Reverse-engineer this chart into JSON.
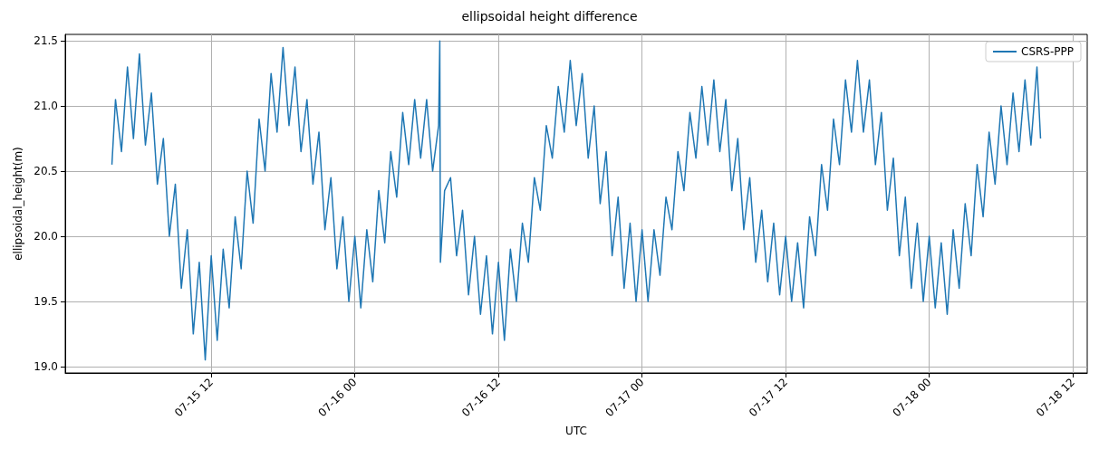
{
  "chart_data": {
    "type": "line",
    "title": "ellipsoidal height difference",
    "xlabel": "UTC",
    "ylabel": "ellipsoidal_height(m)",
    "x": [
      "--07-15T03:42",
      "--07-15T04:00",
      "--07-15T04:30",
      "--07-15T05:00",
      "--07-15T05:30",
      "--07-15T06:00",
      "--07-15T06:30",
      "--07-15T07:00",
      "--07-15T07:30",
      "--07-15T08:00",
      "--07-15T08:30",
      "--07-15T09:00",
      "--07-15T09:30",
      "--07-15T10:00",
      "--07-15T10:30",
      "--07-15T11:00",
      "--07-15T11:30",
      "--07-15T12:00",
      "--07-15T12:30",
      "--07-15T13:00",
      "--07-15T13:30",
      "--07-15T14:00",
      "--07-15T14:30",
      "--07-15T15:00",
      "--07-15T15:30",
      "--07-15T16:00",
      "--07-15T16:30",
      "--07-15T17:00",
      "--07-15T17:30",
      "--07-15T18:00",
      "--07-15T18:30",
      "--07-15T19:00",
      "--07-15T19:30",
      "--07-15T20:00",
      "--07-15T20:30",
      "--07-15T21:00",
      "--07-15T21:30",
      "--07-15T22:00",
      "--07-15T22:30",
      "--07-15T23:00",
      "--07-15T23:30",
      "--07-16T00:00",
      "--07-16T00:30",
      "--07-16T01:00",
      "--07-16T01:30",
      "--07-16T02:00",
      "--07-16T02:30",
      "--07-16T03:00",
      "--07-16T03:30",
      "--07-16T04:00",
      "--07-16T04:30",
      "--07-16T05:00",
      "--07-16T05:30",
      "--07-16T06:00",
      "--07-16T06:30",
      "--07-16T07:00",
      "--07-16T07:06",
      "--07-16T07:09",
      "--07-16T07:30",
      "--07-16T08:00",
      "--07-16T08:30",
      "--07-16T09:00",
      "--07-16T09:30",
      "--07-16T10:00",
      "--07-16T10:30",
      "--07-16T11:00",
      "--07-16T11:30",
      "--07-16T12:00",
      "--07-16T12:30",
      "--07-16T13:00",
      "--07-16T13:30",
      "--07-16T14:00",
      "--07-16T14:30",
      "--07-16T15:00",
      "--07-16T15:30",
      "--07-16T16:00",
      "--07-16T16:30",
      "--07-16T17:00",
      "--07-16T17:30",
      "--07-16T18:00",
      "--07-16T18:30",
      "--07-16T19:00",
      "--07-16T19:30",
      "--07-16T20:00",
      "--07-16T20:30",
      "--07-16T21:00",
      "--07-16T21:30",
      "--07-16T22:00",
      "--07-16T22:30",
      "--07-16T23:00",
      "--07-16T23:30",
      "--07-17T00:00",
      "--07-17T00:30",
      "--07-17T01:00",
      "--07-17T01:30",
      "--07-17T02:00",
      "--07-17T02:30",
      "--07-17T03:00",
      "--07-17T03:30",
      "--07-17T04:00",
      "--07-17T04:30",
      "--07-17T05:00",
      "--07-17T05:30",
      "--07-17T06:00",
      "--07-17T06:30",
      "--07-17T07:00",
      "--07-17T07:30",
      "--07-17T08:00",
      "--07-17T08:30",
      "--07-17T09:00",
      "--07-17T09:30",
      "--07-17T10:00",
      "--07-17T10:30",
      "--07-17T11:00",
      "--07-17T11:30",
      "--07-17T12:00",
      "--07-17T12:30",
      "--07-17T13:00",
      "--07-17T13:30",
      "--07-17T14:00",
      "--07-17T14:30",
      "--07-17T15:00",
      "--07-17T15:30",
      "--07-17T16:00",
      "--07-17T16:30",
      "--07-17T17:00",
      "--07-17T17:30",
      "--07-17T18:00",
      "--07-17T18:30",
      "--07-17T19:00",
      "--07-17T19:30",
      "--07-17T20:00",
      "--07-17T20:30",
      "--07-17T21:00",
      "--07-17T21:30",
      "--07-17T22:00",
      "--07-17T22:30",
      "--07-17T23:00",
      "--07-17T23:30",
      "--07-18T00:00",
      "--07-18T00:30",
      "--07-18T01:00",
      "--07-18T01:30",
      "--07-18T02:00",
      "--07-18T02:30",
      "--07-18T03:00",
      "--07-18T03:30",
      "--07-18T04:00",
      "--07-18T04:30",
      "--07-18T05:00",
      "--07-18T05:30",
      "--07-18T06:00",
      "--07-18T06:30",
      "--07-18T07:00",
      "--07-18T07:30",
      "--07-18T08:00",
      "--07-18T08:30",
      "--07-18T09:00",
      "--07-18T09:18"
    ],
    "series": [
      {
        "name": "CSRS-PPP",
        "color": "#1f77b4",
        "values": [
          20.55,
          21.05,
          20.65,
          21.3,
          20.75,
          21.4,
          20.7,
          21.1,
          20.4,
          20.75,
          20.0,
          20.4,
          19.6,
          20.05,
          19.25,
          19.8,
          19.05,
          19.85,
          19.2,
          19.9,
          19.45,
          20.15,
          19.75,
          20.5,
          20.1,
          20.9,
          20.5,
          21.25,
          20.8,
          21.45,
          20.85,
          21.3,
          20.65,
          21.05,
          20.4,
          20.8,
          20.05,
          20.45,
          19.75,
          20.15,
          19.5,
          20.0,
          19.45,
          20.05,
          19.65,
          20.35,
          19.95,
          20.65,
          20.3,
          20.95,
          20.55,
          21.05,
          20.6,
          21.05,
          20.5,
          20.85,
          21.5,
          19.8,
          20.35,
          20.45,
          19.85,
          20.2,
          19.55,
          20.0,
          19.4,
          19.85,
          19.25,
          19.8,
          19.2,
          19.9,
          19.5,
          20.1,
          19.8,
          20.45,
          20.2,
          20.85,
          20.6,
          21.15,
          20.8,
          21.35,
          20.85,
          21.25,
          20.6,
          21.0,
          20.25,
          20.65,
          19.85,
          20.3,
          19.6,
          20.1,
          19.5,
          20.05,
          19.5,
          20.05,
          19.7,
          20.3,
          20.05,
          20.65,
          20.35,
          20.95,
          20.6,
          21.15,
          20.7,
          21.2,
          20.65,
          21.05,
          20.35,
          20.75,
          20.05,
          20.45,
          19.8,
          20.2,
          19.65,
          20.1,
          19.55,
          20.0,
          19.5,
          19.95,
          19.45,
          20.15,
          19.85,
          20.55,
          20.2,
          20.9,
          20.55,
          21.2,
          20.8,
          21.35,
          20.8,
          21.2,
          20.55,
          20.95,
          20.2,
          20.6,
          19.85,
          20.3,
          19.6,
          20.1,
          19.5,
          20.0,
          19.45,
          19.95,
          19.4,
          20.05,
          19.6,
          20.25,
          19.85,
          20.55,
          20.15,
          20.8,
          20.4,
          21.0,
          20.55,
          21.1,
          20.65,
          21.2,
          20.7,
          21.3,
          20.75
        ]
      }
    ],
    "xlim": [
      "--07-14T23:48",
      "--07-18T13:12"
    ],
    "xticks": [
      {
        "value": "--07-15T12:00",
        "label": "07-15 12"
      },
      {
        "value": "--07-16T00:00",
        "label": "07-16 00"
      },
      {
        "value": "--07-16T12:00",
        "label": "07-16 12"
      },
      {
        "value": "--07-17T00:00",
        "label": "07-17 00"
      },
      {
        "value": "--07-17T12:00",
        "label": "07-17 12"
      },
      {
        "value": "--07-18T00:00",
        "label": "07-18 00"
      },
      {
        "value": "--07-18T12:00",
        "label": "07-18 12"
      }
    ],
    "ylim": [
      18.95,
      21.55
    ],
    "yticks": [
      {
        "value": 19,
        "label": "19.0"
      },
      19.5,
      {
        "value": 20,
        "label": "20.0"
      },
      20.5,
      {
        "value": 21,
        "label": "21.0"
      },
      21.5
    ],
    "grid": true,
    "legend": "top right"
  }
}
